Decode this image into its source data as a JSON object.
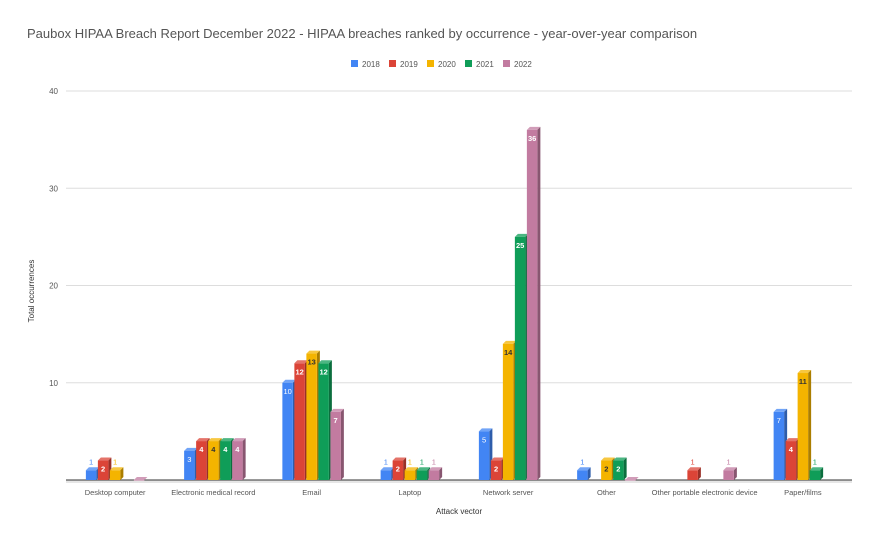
{
  "chart_data": {
    "type": "bar",
    "title": "Paubox HIPAA Breach Report December 2022 - HIPAA breaches ranked by occurrence - year-over-year comparison",
    "xlabel": "Attack vector",
    "ylabel": "Total occurrences",
    "ylim": [
      0,
      40
    ],
    "yticks": [
      10,
      20,
      30,
      40
    ],
    "grid": true,
    "legend_position": "top-center",
    "categories": [
      "Desktop computer",
      "Electronic medical record",
      "Email",
      "Laptop",
      "Network server",
      "Other",
      "Other portable electronic device",
      "Paper/films"
    ],
    "series": [
      {
        "name": "2018",
        "color": "#4285f4",
        "label_color": "#4285f4",
        "values": [
          1,
          3,
          10,
          1,
          5,
          1,
          null,
          7
        ]
      },
      {
        "name": "2019",
        "color": "#db4437",
        "label_color": "#db4437",
        "values": [
          2,
          4,
          12,
          2,
          2,
          null,
          1,
          4
        ]
      },
      {
        "name": "2020",
        "color": "#f4b400",
        "label_color": "#f4b400",
        "values": [
          1,
          4,
          13,
          1,
          14,
          2,
          null,
          11
        ]
      },
      {
        "name": "2021",
        "color": "#0f9d58",
        "label_color": "#0f9d58",
        "values": [
          null,
          4,
          12,
          1,
          25,
          2,
          null,
          1
        ]
      },
      {
        "name": "2022",
        "color": "#c27ba0",
        "label_color": "#c27ba0",
        "values": [
          0,
          4,
          7,
          1,
          36,
          0,
          1,
          null
        ]
      }
    ]
  }
}
